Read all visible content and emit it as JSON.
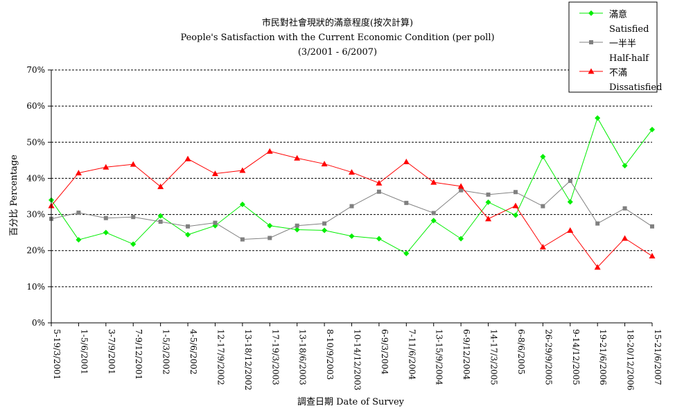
{
  "chart_data": {
    "type": "line",
    "title_lines": [
      "市民對社會現狀的滿意程度(按次計算)",
      "People's Satisfaction with the Current Economic Condition  (per poll)",
      "(3/2001 - 6/2007)"
    ],
    "ylabel": "百分比 Percentage",
    "xlabel": "調查日期 Date of Survey",
    "ylim": [
      0,
      70
    ],
    "yticks": [
      "0%",
      "10%",
      "20%",
      "30%",
      "40%",
      "50%",
      "60%",
      "70%"
    ],
    "grid": "horizontal-dashed",
    "legend_position": "top-right",
    "categories": [
      "5-19/3/2001",
      "1-5/6/2001",
      "3-7/9/2001",
      "7-9/12/2001",
      "1-5/3/2002",
      "4-5/6/2002",
      "12-17/9/2002",
      "13-18/12/2002",
      "17-19/3/2003",
      "13-18/6/2003",
      "8-10/9/2003",
      "10-14/12/2003",
      "6-9/3/2004",
      "7-11/6/2004",
      "13-15/9/2004",
      "6-9/12/2004",
      "14-17/3/2005",
      "6-8/6/2005",
      "26-29/9/2005",
      "9-14/12/2005",
      "19-21/6/2006",
      "18-20/12/2006",
      "15-21/6/2007"
    ],
    "series": [
      {
        "name": "滿意",
        "name_en": "Satisfied",
        "color": "#00ee00",
        "marker": "diamond",
        "values": [
          34.0,
          23.0,
          25.0,
          21.8,
          29.6,
          24.4,
          26.9,
          32.8,
          26.9,
          25.8,
          25.6,
          24.0,
          23.3,
          19.2,
          28.3,
          23.3,
          33.4,
          29.8,
          46.0,
          33.5,
          56.7,
          43.5,
          53.5
        ]
      },
      {
        "name": "一半半",
        "name_en": "Half-half",
        "color": "#808080",
        "marker": "square",
        "values": [
          28.8,
          30.5,
          29.0,
          29.3,
          28.0,
          26.7,
          27.7,
          23.1,
          23.5,
          26.9,
          27.5,
          32.3,
          36.3,
          33.2,
          30.4,
          36.7,
          35.5,
          36.2,
          32.3,
          39.3,
          27.5,
          31.7,
          26.7
        ]
      },
      {
        "name": "不滿",
        "name_en": "Dissatisfied",
        "color": "#ff0000",
        "marker": "triangle",
        "values": [
          32.4,
          41.5,
          43.1,
          43.9,
          37.7,
          45.4,
          41.3,
          42.2,
          47.5,
          45.6,
          44.0,
          41.7,
          38.7,
          44.6,
          38.9,
          37.8,
          28.8,
          32.4,
          21.0,
          25.6,
          15.4,
          23.4,
          18.5
        ]
      }
    ]
  }
}
